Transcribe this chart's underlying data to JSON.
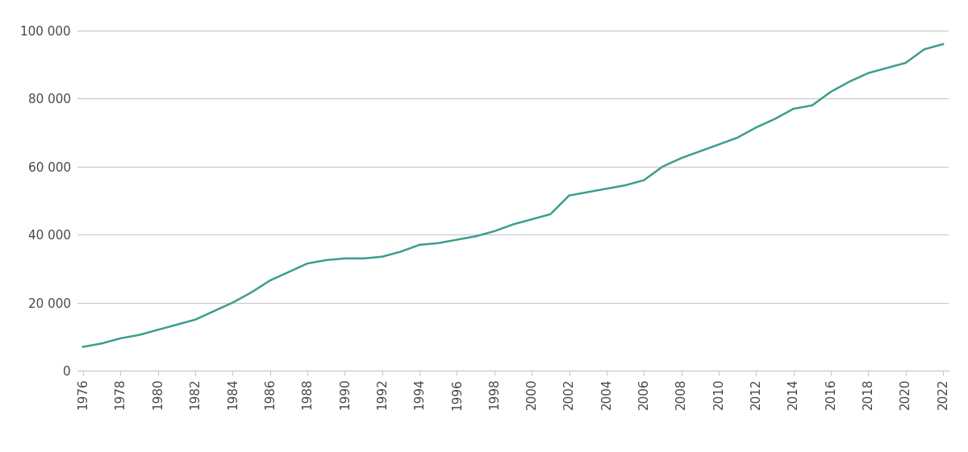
{
  "years": [
    1976,
    1977,
    1978,
    1979,
    1980,
    1981,
    1982,
    1983,
    1984,
    1985,
    1986,
    1987,
    1988,
    1989,
    1990,
    1991,
    1992,
    1993,
    1994,
    1995,
    1996,
    1997,
    1998,
    1999,
    2000,
    2001,
    2002,
    2003,
    2004,
    2005,
    2006,
    2007,
    2008,
    2009,
    2010,
    2011,
    2012,
    2013,
    2014,
    2015,
    2016,
    2017,
    2018,
    2019,
    2020,
    2021,
    2022
  ],
  "values": [
    7000,
    8000,
    9500,
    10500,
    12000,
    13500,
    15000,
    17500,
    20000,
    23000,
    26500,
    29000,
    31500,
    32500,
    33000,
    33000,
    33500,
    35000,
    37000,
    37500,
    38500,
    39500,
    41000,
    43000,
    44500,
    46000,
    51500,
    52500,
    53500,
    54500,
    56000,
    60000,
    62500,
    64500,
    66500,
    68500,
    71500,
    74000,
    77000,
    78000,
    82000,
    85000,
    87500,
    89000,
    90500,
    94500,
    96000
  ],
  "line_color": "#3a9e8d",
  "line_width": 1.8,
  "background_color": "#ffffff",
  "grid_color": "#c8c8c8",
  "yticks": [
    0,
    20000,
    40000,
    60000,
    80000,
    100000
  ],
  "ytick_labels": [
    "0",
    "20 000",
    "40 000",
    "60 000",
    "80 000",
    "100 000"
  ],
  "xtick_step": 2,
  "xlim": [
    1976,
    2022
  ],
  "ylim": [
    0,
    105000
  ],
  "tick_fontsize": 11,
  "tick_color": "#444444"
}
